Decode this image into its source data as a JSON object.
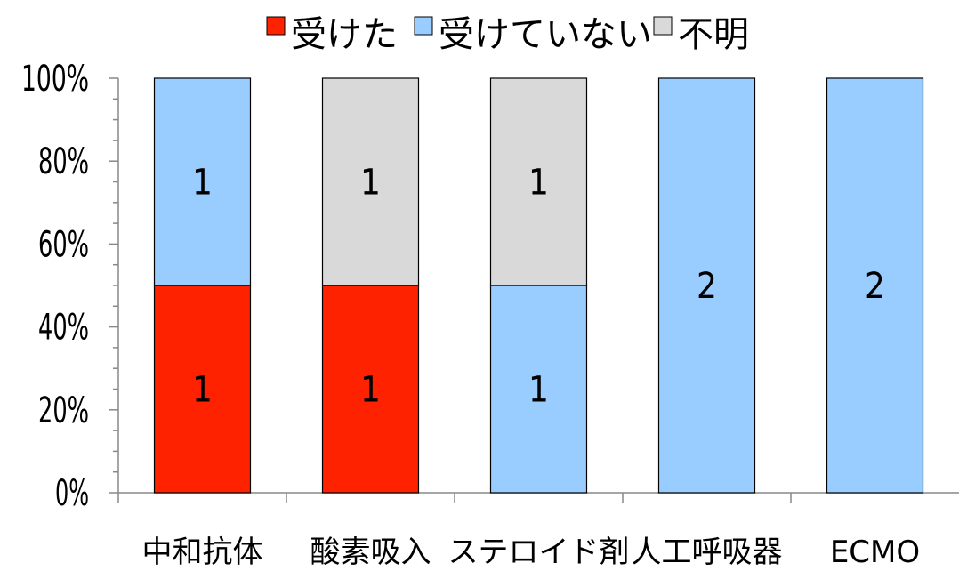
{
  "chart_data": {
    "type": "bar",
    "stacked": true,
    "percent": true,
    "categories": [
      "中和抗体",
      "酸素吸入",
      "ステロイド剤",
      "人工呼吸器",
      "ECMO"
    ],
    "series": [
      {
        "name": "受けた",
        "color": "#ff2200",
        "values": [
          1,
          1,
          0,
          0,
          0
        ]
      },
      {
        "name": "受けていない",
        "color": "#99ccff",
        "values": [
          1,
          0,
          1,
          2,
          2
        ]
      },
      {
        "name": "不明",
        "color": "#d9d9d9",
        "values": [
          0,
          1,
          1,
          0,
          0
        ]
      }
    ],
    "y_ticks": [
      "0%",
      "20%",
      "40%",
      "60%",
      "80%",
      "100%"
    ],
    "ylim": [
      0,
      100
    ],
    "grid": false,
    "legend_position": "top"
  }
}
